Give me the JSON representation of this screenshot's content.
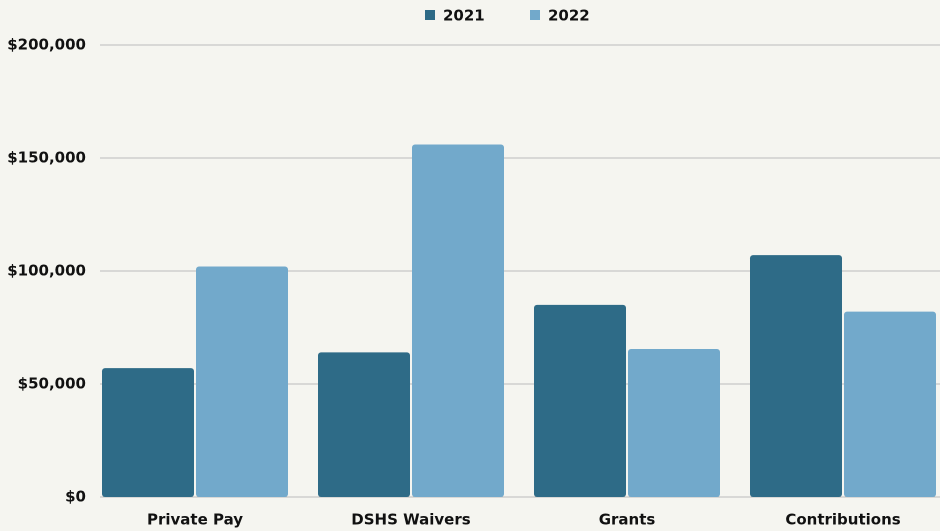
{
  "chart_data": {
    "type": "bar",
    "categories": [
      "Private Pay",
      "DSHS Waivers",
      "Grants",
      "Contributions"
    ],
    "series": [
      {
        "name": "2021",
        "color": "#2e6b87",
        "values": [
          57000,
          64000,
          85000,
          107000
        ]
      },
      {
        "name": "2022",
        "color": "#72a9cb",
        "values": [
          102000,
          156000,
          65500,
          82000
        ]
      }
    ],
    "ylim": [
      0,
      200000
    ],
    "yticks": [
      {
        "value": 0,
        "label": "$0"
      },
      {
        "value": 50000,
        "label": "$50,000"
      },
      {
        "value": 100000,
        "label": "$100,000"
      },
      {
        "value": 150000,
        "label": "$150,000"
      },
      {
        "value": 200000,
        "label": "$200,000"
      }
    ],
    "grid": true,
    "legend": "top"
  }
}
